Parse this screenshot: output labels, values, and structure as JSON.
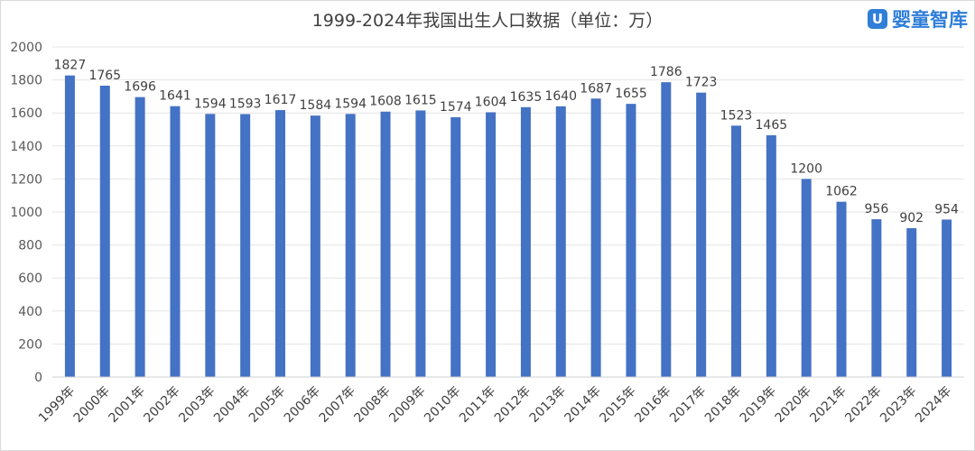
{
  "chart_data": {
    "type": "bar",
    "title": "1999-2024年我国出生人口数据（单位：万）",
    "xlabel": "",
    "ylabel": "",
    "ylim": [
      0,
      2000
    ],
    "yticks": [
      0,
      200,
      400,
      600,
      800,
      1000,
      1200,
      1400,
      1600,
      1800,
      2000
    ],
    "grid": true,
    "bar_color": "#4472c4",
    "categories": [
      "1999年",
      "2000年",
      "2001年",
      "2002年",
      "2003年",
      "2004年",
      "2005年",
      "2006年",
      "2007年",
      "2008年",
      "2009年",
      "2010年",
      "2011年",
      "2012年",
      "2013年",
      "2014年",
      "2015年",
      "2016年",
      "2017年",
      "2018年",
      "2019年",
      "2020年",
      "2021年",
      "2022年",
      "2023年",
      "2024年"
    ],
    "values": [
      1827,
      1765,
      1696,
      1641,
      1594,
      1593,
      1617,
      1584,
      1594,
      1608,
      1615,
      1574,
      1604,
      1635,
      1640,
      1687,
      1655,
      1786,
      1723,
      1523,
      1465,
      1200,
      1062,
      956,
      902,
      954
    ]
  },
  "logo": {
    "mark": "U",
    "text": "婴童智库",
    "color": "#2f7ed8"
  }
}
